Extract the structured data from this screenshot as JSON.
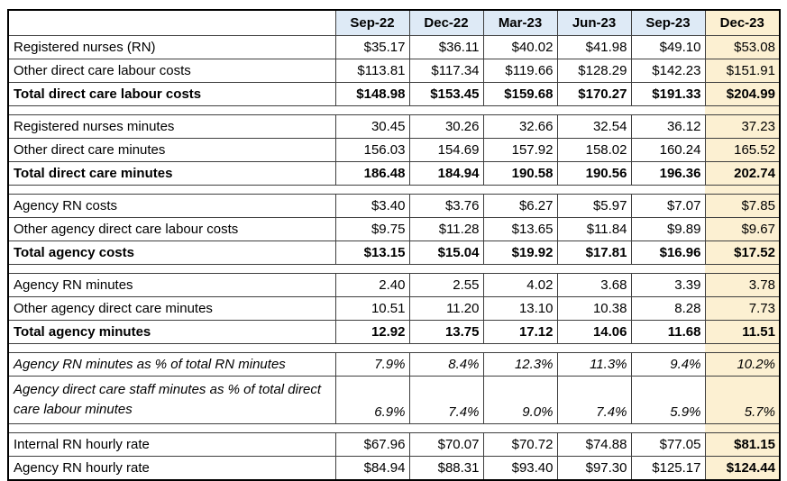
{
  "chart_data": {
    "type": "table",
    "columns": [
      "",
      "Sep-22",
      "Dec-22",
      "Mar-23",
      "Jun-23",
      "Sep-23",
      "Dec-23"
    ],
    "highlight_column": "Dec-23",
    "sections": [
      {
        "name": "direct-care-costs",
        "rows": [
          {
            "label": "Registered nurses (RN)",
            "values": [
              "$35.17",
              "$36.11",
              "$40.02",
              "$41.98",
              "$49.10",
              "$53.08"
            ],
            "style": "normal"
          },
          {
            "label": "Other direct care labour costs",
            "values": [
              "$113.81",
              "$117.34",
              "$119.66",
              "$128.29",
              "$142.23",
              "$151.91"
            ],
            "style": "normal"
          },
          {
            "label": "Total direct care labour costs",
            "values": [
              "$148.98",
              "$153.45",
              "$159.68",
              "$170.27",
              "$191.33",
              "$204.99"
            ],
            "style": "total"
          }
        ]
      },
      {
        "name": "direct-care-minutes",
        "rows": [
          {
            "label": "Registered nurses minutes",
            "values": [
              "30.45",
              "30.26",
              "32.66",
              "32.54",
              "36.12",
              "37.23"
            ],
            "style": "normal"
          },
          {
            "label": "Other direct care minutes",
            "values": [
              "156.03",
              "154.69",
              "157.92",
              "158.02",
              "160.24",
              "165.52"
            ],
            "style": "normal"
          },
          {
            "label": "Total direct care minutes",
            "values": [
              "186.48",
              "184.94",
              "190.58",
              "190.56",
              "196.36",
              "202.74"
            ],
            "style": "total"
          }
        ]
      },
      {
        "name": "agency-costs",
        "rows": [
          {
            "label": "Agency RN costs",
            "values": [
              "$3.40",
              "$3.76",
              "$6.27",
              "$5.97",
              "$7.07",
              "$7.85"
            ],
            "style": "normal"
          },
          {
            "label": "Other agency direct care labour costs",
            "values": [
              "$9.75",
              "$11.28",
              "$13.65",
              "$11.84",
              "$9.89",
              "$9.67"
            ],
            "style": "normal"
          },
          {
            "label": "Total agency costs",
            "values": [
              "$13.15",
              "$15.04",
              "$19.92",
              "$17.81",
              "$16.96",
              "$17.52"
            ],
            "style": "total"
          }
        ]
      },
      {
        "name": "agency-minutes",
        "rows": [
          {
            "label": "Agency RN minutes",
            "values": [
              "2.40",
              "2.55",
              "4.02",
              "3.68",
              "3.39",
              "3.78"
            ],
            "style": "normal"
          },
          {
            "label": "Other agency direct care minutes",
            "values": [
              "10.51",
              "11.20",
              "13.10",
              "10.38",
              "8.28",
              "7.73"
            ],
            "style": "normal"
          },
          {
            "label": "Total agency minutes",
            "values": [
              "12.92",
              "13.75",
              "17.12",
              "14.06",
              "11.68",
              "11.51"
            ],
            "style": "total"
          }
        ]
      },
      {
        "name": "agency-percentages",
        "rows": [
          {
            "label": "Agency RN minutes as % of total RN minutes",
            "values": [
              "7.9%",
              "8.4%",
              "12.3%",
              "11.3%",
              "9.4%",
              "10.2%"
            ],
            "style": "pct"
          },
          {
            "label": "Agency direct care staff minutes as % of total direct care labour minutes",
            "values": [
              "6.9%",
              "7.4%",
              "9.0%",
              "7.4%",
              "5.9%",
              "5.7%"
            ],
            "style": "pct-tall"
          }
        ]
      },
      {
        "name": "hourly-rates",
        "rows": [
          {
            "label": "Internal RN hourly rate",
            "values": [
              "$67.96",
              "$70.07",
              "$70.72",
              "$74.88",
              "$77.05",
              "$81.15"
            ],
            "style": "last-bold"
          },
          {
            "label": "Agency RN hourly rate",
            "values": [
              "$84.94",
              "$88.31",
              "$93.40",
              "$97.30",
              "$125.17",
              "$124.44"
            ],
            "style": "last-bold"
          }
        ]
      }
    ]
  },
  "colors": {
    "header_fill": "#deeaf6",
    "highlight_fill": "#fcf0d2",
    "border": "#000000"
  }
}
